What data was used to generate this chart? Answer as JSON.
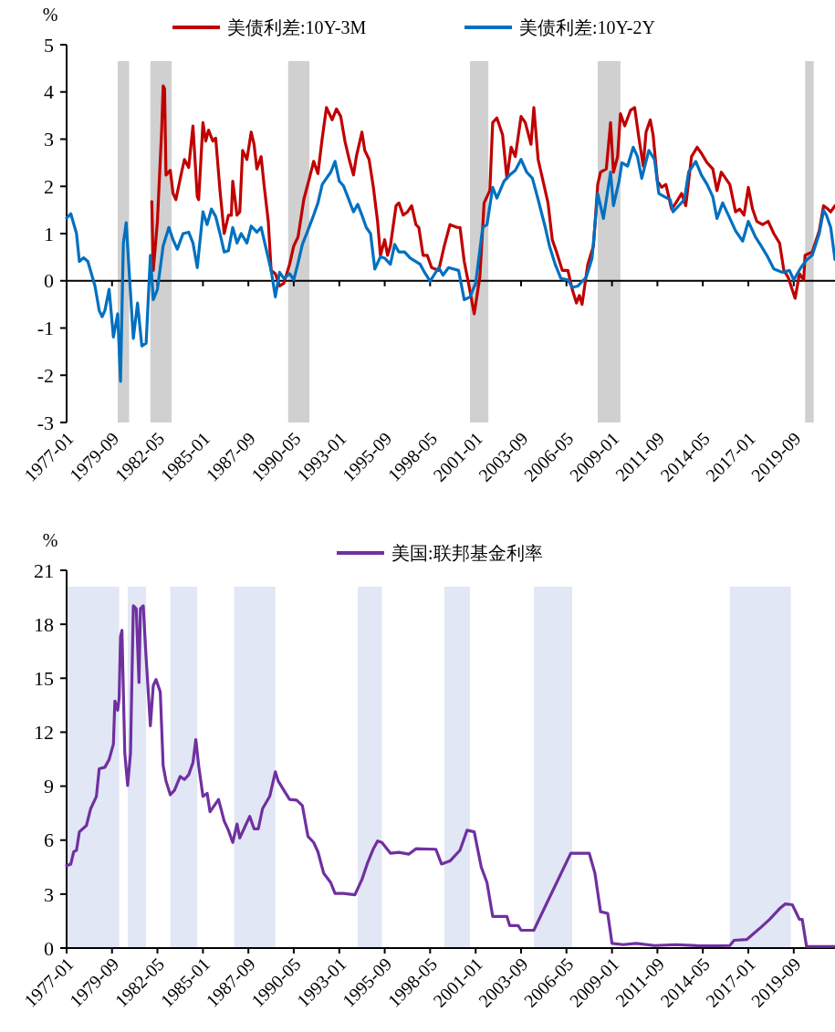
{
  "chart_data": [
    {
      "type": "line",
      "ylabel": "%",
      "legend": "top",
      "xlim": [
        "1977-01",
        "2022-02"
      ],
      "xticks": [
        "1977-01",
        "1979-09",
        "1982-05",
        "1985-01",
        "1987-09",
        "1990-05",
        "1993-01",
        "1995-09",
        "1998-05",
        "2001-01",
        "2003-09",
        "2006-05",
        "2009-01",
        "2011-09",
        "2014-05",
        "2017-01",
        "2019-09"
      ],
      "ylim": [
        -3,
        5
      ],
      "yticks": [
        -3,
        -2,
        -1,
        0,
        1,
        2,
        3,
        4,
        5
      ],
      "bands": [
        {
          "axis": "x",
          "from": "1980-01",
          "to": "1980-09",
          "color": "#d0d0d0"
        },
        {
          "axis": "x",
          "from": "1981-12",
          "to": "1983-03",
          "color": "#d0d0d0"
        },
        {
          "axis": "x",
          "from": "1990-01",
          "to": "1991-04",
          "color": "#d0d0d0"
        },
        {
          "axis": "x",
          "from": "2000-09",
          "to": "2001-10",
          "color": "#d0d0d0"
        },
        {
          "axis": "x",
          "from": "2008-03",
          "to": "2009-07",
          "color": "#d0d0d0"
        },
        {
          "axis": "x",
          "from": "2020-05",
          "to": "2020-11",
          "color": "#d0d0d0"
        }
      ],
      "series": [
        {
          "name": "美债利差:10Y-3M",
          "color": "#c00000",
          "x": [
            "1982-01",
            "1982-02",
            "1982-03",
            "1982-05",
            "1982-08",
            "1982-09",
            "1982-10",
            "1982-11",
            "1983-02",
            "1983-04",
            "1983-06",
            "1983-10",
            "1983-12",
            "1984-03",
            "1984-06",
            "1984-09",
            "1984-10",
            "1985-01",
            "1985-03",
            "1985-05",
            "1985-08",
            "1985-10",
            "1986-01",
            "1986-04",
            "1986-07",
            "1986-09",
            "1986-10",
            "1987-01",
            "1987-03",
            "1987-05",
            "1987-08",
            "1987-11",
            "1988-01",
            "1988-03",
            "1988-06",
            "1988-08",
            "1988-11",
            "1989-01",
            "1989-04",
            "1989-07",
            "1989-10",
            "1990-02",
            "1990-05",
            "1990-08",
            "1990-10",
            "1990-12",
            "1991-04",
            "1991-07",
            "1991-10",
            "1992-01",
            "1992-04",
            "1992-08",
            "1992-11",
            "1993-02",
            "1993-05",
            "1993-08",
            "1993-11",
            "1994-01",
            "1994-05",
            "1994-07",
            "1994-10",
            "1995-01",
            "1995-04",
            "1995-06",
            "1995-09",
            "1995-11",
            "1996-01",
            "1996-05",
            "1996-07",
            "1996-10",
            "1997-01",
            "1997-04",
            "1997-07",
            "1997-09",
            "1997-12",
            "1998-03",
            "1998-06",
            "1998-11",
            "1999-03",
            "1999-07",
            "1999-12",
            "2000-02",
            "2000-05",
            "2000-08",
            "2000-12",
            "2001-04",
            "2001-07",
            "2001-11",
            "2002-01",
            "2002-04",
            "2002-08",
            "2002-11",
            "2003-02",
            "2003-05",
            "2003-09",
            "2003-12",
            "2004-04",
            "2004-06",
            "2004-09",
            "2005-01",
            "2005-04",
            "2005-07",
            "2005-10",
            "2006-02",
            "2006-06",
            "2006-09",
            "2006-12",
            "2007-02",
            "2007-04",
            "2007-08",
            "2007-12",
            "2008-03",
            "2008-05",
            "2008-09",
            "2008-12",
            "2009-02",
            "2009-05",
            "2009-07",
            "2009-10",
            "2010-02",
            "2010-05",
            "2010-08",
            "2010-11",
            "2011-01",
            "2011-04",
            "2011-06",
            "2011-09",
            "2011-12",
            "2012-03",
            "2012-07",
            "2012-10",
            "2013-02",
            "2013-05",
            "2013-09",
            "2014-01",
            "2014-04",
            "2014-08",
            "2014-12",
            "2015-03",
            "2015-06",
            "2015-09",
            "2015-12",
            "2016-04",
            "2016-07",
            "2016-10",
            "2017-01",
            "2017-04",
            "2017-07",
            "2017-11",
            "2018-03",
            "2018-07",
            "2018-11",
            "2019-02",
            "2019-05",
            "2019-10",
            "2020-01",
            "2020-04",
            "2020-05",
            "2020-10",
            "2021-03",
            "2021-06",
            "2021-09",
            "2021-11",
            "2022-02"
          ],
          "values": [
            1.68,
            0.22,
            0.54,
            1.26,
            3.22,
            4.13,
            4.07,
            2.24,
            2.34,
            1.85,
            1.72,
            2.3,
            2.57,
            2.4,
            3.28,
            1.78,
            1.72,
            3.35,
            2.96,
            3.19,
            2.96,
            3.02,
            1.91,
            1.0,
            1.39,
            1.39,
            2.11,
            1.39,
            1.46,
            2.76,
            2.57,
            3.15,
            2.89,
            2.37,
            2.63,
            2.04,
            1.26,
            0.22,
            0.15,
            -0.11,
            -0.05,
            0.35,
            0.74,
            0.93,
            1.32,
            1.72,
            2.17,
            2.53,
            2.27,
            3.02,
            3.67,
            3.41,
            3.64,
            3.48,
            2.96,
            2.57,
            2.24,
            2.63,
            3.15,
            2.76,
            2.57,
            1.98,
            1.26,
            0.54,
            0.87,
            0.54,
            0.74,
            1.59,
            1.65,
            1.39,
            1.46,
            1.59,
            1.19,
            1.13,
            0.54,
            0.54,
            0.28,
            0.22,
            0.74,
            1.19,
            1.13,
            1.13,
            0.41,
            -0.05,
            -0.7,
            0.08,
            1.65,
            1.91,
            3.35,
            3.45,
            3.09,
            2.17,
            2.83,
            2.63,
            3.48,
            3.35,
            2.89,
            3.67,
            2.57,
            2.04,
            1.65,
            0.87,
            0.61,
            0.22,
            0.22,
            -0.18,
            -0.47,
            -0.31,
            -0.5,
            0.35,
            0.74,
            2.04,
            2.3,
            2.37,
            3.35,
            2.3,
            2.63,
            3.54,
            3.28,
            3.61,
            3.67,
            3.02,
            2.43,
            3.15,
            3.41,
            3.09,
            2.11,
            1.98,
            2.04,
            1.52,
            1.65,
            1.85,
            1.59,
            2.63,
            2.83,
            2.7,
            2.5,
            2.37,
            1.91,
            2.3,
            2.17,
            2.04,
            1.46,
            1.52,
            1.39,
            1.98,
            1.52,
            1.26,
            1.19,
            1.26,
            1.0,
            0.8,
            0.22,
            0.08,
            -0.37,
            0.15,
            0.02,
            0.54,
            0.61,
            1.06,
            1.59,
            1.52,
            1.46,
            1.59
          ]
        },
        {
          "name": "美债利差:10Y-2Y",
          "color": "#0070c0",
          "x": [
            "1977-01",
            "1977-04",
            "1977-08",
            "1977-10",
            "1978-01",
            "1978-04",
            "1978-09",
            "1978-12",
            "1979-02",
            "1979-04",
            "1979-07",
            "1979-10",
            "1980-01",
            "1980-03",
            "1980-05",
            "1980-07",
            "1980-09",
            "1980-12",
            "1981-03",
            "1981-06",
            "1981-09",
            "1981-12",
            "1982-02",
            "1982-05",
            "1982-09",
            "1983-01",
            "1983-04",
            "1983-07",
            "1983-11",
            "1984-03",
            "1984-06",
            "1984-09",
            "1985-01",
            "1985-04",
            "1985-07",
            "1985-10",
            "1986-01",
            "1986-04",
            "1986-07",
            "1986-10",
            "1987-01",
            "1987-04",
            "1987-08",
            "1987-11",
            "1988-03",
            "1988-06",
            "1988-10",
            "1989-01",
            "1989-04",
            "1989-07",
            "1989-10",
            "1990-02",
            "1990-05",
            "1990-08",
            "1990-11",
            "1991-02",
            "1991-07",
            "1991-10",
            "1992-01",
            "1992-04",
            "1992-07",
            "1992-10",
            "1993-01",
            "1993-04",
            "1993-07",
            "1993-11",
            "1994-02",
            "1994-05",
            "1994-08",
            "1994-11",
            "1995-02",
            "1995-06",
            "1995-09",
            "1996-01",
            "1996-04",
            "1996-07",
            "1996-11",
            "1997-03",
            "1997-10",
            "1998-01",
            "1998-05",
            "1998-11",
            "1999-02",
            "1999-06",
            "2000-01",
            "2000-05",
            "2000-09",
            "2001-01",
            "2001-06",
            "2001-09",
            "2002-01",
            "2002-04",
            "2002-09",
            "2003-01",
            "2003-05",
            "2003-09",
            "2004-01",
            "2004-05",
            "2004-09",
            "2005-02",
            "2005-05",
            "2005-09",
            "2006-01",
            "2006-06",
            "2006-09",
            "2007-01",
            "2007-07",
            "2007-11",
            "2008-03",
            "2008-07",
            "2008-12",
            "2009-02",
            "2009-06",
            "2009-08",
            "2009-12",
            "2010-04",
            "2010-07",
            "2010-10",
            "2011-03",
            "2011-07",
            "2011-10",
            "2012-02",
            "2012-06",
            "2012-08",
            "2012-12",
            "2013-04",
            "2013-07",
            "2013-12",
            "2014-04",
            "2014-08",
            "2014-12",
            "2015-03",
            "2015-07",
            "2015-11",
            "2016-04",
            "2016-09",
            "2017-01",
            "2017-06",
            "2017-10",
            "2018-02",
            "2018-07",
            "2019-01",
            "2019-06",
            "2019-09",
            "2020-02",
            "2020-06",
            "2020-10",
            "2021-03",
            "2021-06",
            "2021-08",
            "2021-11",
            "2022-02"
          ],
          "values": [
            1.33,
            1.42,
            1.0,
            0.41,
            0.49,
            0.41,
            -0.11,
            -0.63,
            -0.76,
            -0.63,
            -0.18,
            -1.19,
            -0.7,
            -2.13,
            0.8,
            1.23,
            0.22,
            -1.22,
            -0.47,
            -1.38,
            -1.32,
            0.54,
            -0.4,
            -0.18,
            0.74,
            1.13,
            0.87,
            0.67,
            1.0,
            1.03,
            0.8,
            0.28,
            1.46,
            1.19,
            1.52,
            1.36,
            1.0,
            0.61,
            0.64,
            1.13,
            0.8,
            1.0,
            0.8,
            1.16,
            1.03,
            1.13,
            0.61,
            0.22,
            -0.34,
            0.18,
            0.05,
            0.15,
            0.02,
            0.38,
            0.77,
            1.0,
            1.39,
            1.65,
            2.04,
            2.17,
            2.3,
            2.53,
            2.11,
            2.01,
            1.78,
            1.46,
            1.62,
            1.39,
            1.13,
            1.0,
            0.25,
            0.51,
            0.48,
            0.35,
            0.77,
            0.61,
            0.61,
            0.48,
            0.35,
            0.18,
            -0.01,
            0.28,
            0.12,
            0.28,
            0.22,
            -0.4,
            -0.34,
            -0.05,
            1.13,
            1.19,
            1.98,
            1.75,
            2.11,
            2.24,
            2.34,
            2.57,
            2.3,
            2.17,
            1.72,
            1.13,
            0.74,
            0.35,
            0.05,
            0.02,
            -0.14,
            -0.11,
            0.08,
            0.48,
            1.85,
            1.32,
            2.3,
            1.59,
            2.11,
            2.5,
            2.43,
            2.83,
            2.63,
            2.17,
            2.76,
            2.57,
            1.85,
            1.78,
            1.72,
            1.46,
            1.59,
            1.72,
            2.3,
            2.53,
            2.24,
            2.04,
            1.78,
            1.32,
            1.65,
            1.39,
            1.06,
            0.84,
            1.26,
            0.93,
            0.74,
            0.54,
            0.25,
            0.18,
            0.22,
            0.02,
            0.28,
            0.44,
            0.54,
            1.0,
            1.49,
            1.39,
            1.13,
            0.45
          ]
        }
      ]
    },
    {
      "type": "line",
      "ylabel": "%",
      "legend": "top",
      "xlim": [
        "1977-01",
        "2022-02"
      ],
      "xticks": [
        "1977-01",
        "1979-09",
        "1982-05",
        "1985-01",
        "1987-09",
        "1990-05",
        "1993-01",
        "1995-09",
        "1998-05",
        "2001-01",
        "2003-09",
        "2006-05",
        "2009-01",
        "2011-09",
        "2014-05",
        "2017-01",
        "2019-09"
      ],
      "ylim": [
        0,
        21
      ],
      "yticks": [
        0,
        3,
        6,
        9,
        12,
        15,
        18,
        21
      ],
      "bands": [
        {
          "axis": "x",
          "from": "1977-01",
          "to": "1980-02",
          "color": "#e1e7f4"
        },
        {
          "axis": "x",
          "from": "1980-08",
          "to": "1981-09",
          "color": "#e1e7f4"
        },
        {
          "axis": "x",
          "from": "1983-02",
          "to": "1984-09",
          "color": "#e1e7f4"
        },
        {
          "axis": "x",
          "from": "1986-11",
          "to": "1989-04",
          "color": "#e1e7f4"
        },
        {
          "axis": "x",
          "from": "1994-02",
          "to": "1995-07",
          "color": "#e1e7f4"
        },
        {
          "axis": "x",
          "from": "1999-03",
          "to": "2000-09",
          "color": "#e1e7f4"
        },
        {
          "axis": "x",
          "from": "2004-06",
          "to": "2006-09",
          "color": "#e1e7f4"
        },
        {
          "axis": "x",
          "from": "2015-12",
          "to": "2019-07",
          "color": "#e1e7f4"
        }
      ],
      "series": [
        {
          "name": "美国:联邦基金利率",
          "color": "#7030a0",
          "x": [
            "1977-01",
            "1977-04",
            "1977-06",
            "1977-08",
            "1977-10",
            "1978-03",
            "1978-06",
            "1978-10",
            "1978-12",
            "1979-04",
            "1979-07",
            "1979-10",
            "1979-11",
            "1980-01",
            "1980-02",
            "1980-03",
            "1980-04",
            "1980-06",
            "1980-08",
            "1980-10",
            "1980-12",
            "1981-02",
            "1981-04",
            "1981-05",
            "1981-07",
            "1981-09",
            "1981-12",
            "1982-02",
            "1982-04",
            "1982-07",
            "1982-09",
            "1982-11",
            "1983-02",
            "1983-05",
            "1983-09",
            "1983-12",
            "1984-03",
            "1984-06",
            "1984-08",
            "1984-10",
            "1985-01",
            "1985-04",
            "1985-06",
            "1985-09",
            "1985-12",
            "1986-04",
            "1986-07",
            "1986-10",
            "1987-01",
            "1987-03",
            "1987-07",
            "1987-10",
            "1988-01",
            "1988-04",
            "1988-07",
            "1988-12",
            "1989-04",
            "1989-06",
            "1989-10",
            "1990-02",
            "1990-07",
            "1990-11",
            "1991-03",
            "1991-07",
            "1991-10",
            "1992-02",
            "1992-07",
            "1992-10",
            "1993-04",
            "1993-12",
            "1994-05",
            "1994-09",
            "1995-01",
            "1995-04",
            "1995-07",
            "1996-01",
            "1996-07",
            "1997-02",
            "1997-07",
            "1998-09",
            "1999-01",
            "1999-07",
            "2000-02",
            "2000-07",
            "2000-12",
            "2001-05",
            "2001-09",
            "2002-01",
            "2002-11",
            "2003-01",
            "2003-07",
            "2003-09",
            "2004-06",
            "2005-07",
            "2006-08",
            "2007-09",
            "2008-01",
            "2008-05",
            "2008-10",
            "2009-01",
            "2009-09",
            "2010-06",
            "2011-07",
            "2012-10",
            "2014-03",
            "2015-12",
            "2016-03",
            "2016-12",
            "2017-10",
            "2018-04",
            "2018-11",
            "2019-03",
            "2019-08",
            "2020-01",
            "2020-03",
            "2020-06",
            "2022-02"
          ],
          "values": [
            4.58,
            4.67,
            5.35,
            5.44,
            6.46,
            6.81,
            7.75,
            8.43,
            9.97,
            10.05,
            10.48,
            11.34,
            13.73,
            13.22,
            13.9,
            17.32,
            17.66,
            10.82,
            9.03,
            10.82,
            19.03,
            18.86,
            14.76,
            18.86,
            19.03,
            16.12,
            12.36,
            14.59,
            14.93,
            14.24,
            10.14,
            9.29,
            8.52,
            8.77,
            9.54,
            9.37,
            9.63,
            10.31,
            11.59,
            10.14,
            8.43,
            8.6,
            7.58,
            7.92,
            8.26,
            7.06,
            6.55,
            5.87,
            6.89,
            6.12,
            6.81,
            7.32,
            6.63,
            6.63,
            7.75,
            8.43,
            9.8,
            9.29,
            8.77,
            8.26,
            8.22,
            7.92,
            6.21,
            5.87,
            5.35,
            4.16,
            3.64,
            3.04,
            3.04,
            2.96,
            3.81,
            4.75,
            5.52,
            5.95,
            5.87,
            5.27,
            5.32,
            5.22,
            5.52,
            5.49,
            4.67,
            4.84,
            5.44,
            6.55,
            6.46,
            4.5,
            3.64,
            1.76,
            1.76,
            1.25,
            1.25,
            0.99,
            0.99,
            3.13,
            5.27,
            5.27,
            4.16,
            2.02,
            1.93,
            0.26,
            0.19,
            0.26,
            0.14,
            0.19,
            0.12,
            0.14,
            0.43,
            0.48,
            1.16,
            1.59,
            2.19,
            2.45,
            2.41,
            1.59,
            1.59,
            0.09,
            0.09
          ]
        }
      ]
    }
  ]
}
